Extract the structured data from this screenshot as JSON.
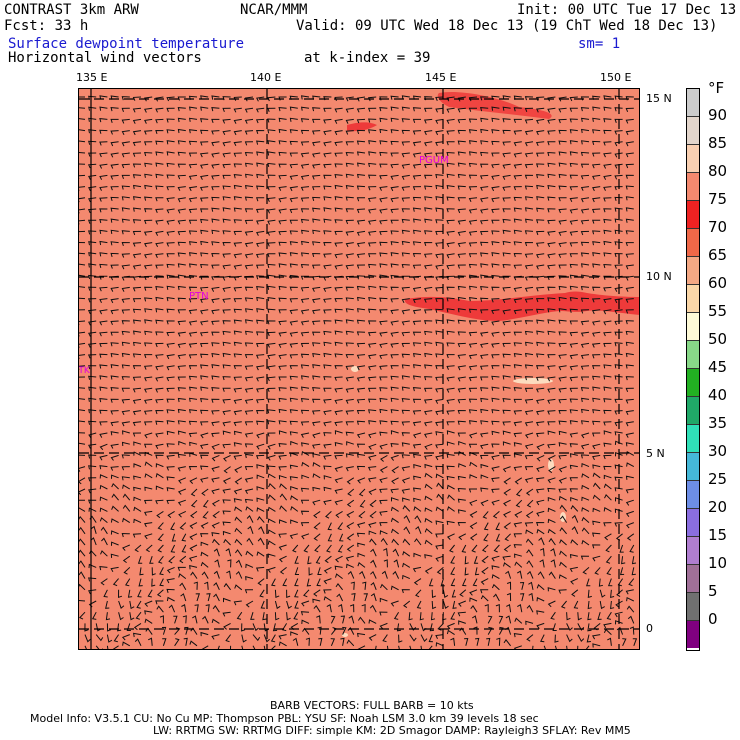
{
  "header": {
    "model": "CONTRAST  3km ARW",
    "org": "NCAR/MMM",
    "init": "Init: 00 UTC Tue 17 Dec 13",
    "fcst": "Fcst:   33 h",
    "valid": "Valid: 09 UTC Wed 18 Dec 13 (19 ChT Wed 18 Dec 13)",
    "field1": "Surface dewpoint temperature",
    "sm": "sm= 1",
    "field2": "Horizontal wind vectors",
    "kindex": "at k-index =  39"
  },
  "axes": {
    "lon_labels": [
      "135 E",
      "140 E",
      "145 E",
      "150 E"
    ],
    "lat_labels": [
      "15 N",
      "10 N",
      "5 N",
      "0"
    ]
  },
  "map": {
    "stations": [
      "PGUM",
      "PTN",
      "PTK"
    ],
    "base_color": "#f4896f",
    "moist_color": "#ee3a3a",
    "dry_color": "#fde5c8"
  },
  "legend": {
    "unit": "°F",
    "labels": [
      "90",
      "85",
      "80",
      "75",
      "70",
      "65",
      "60",
      "55",
      "50",
      "45",
      "40",
      "35",
      "30",
      "25",
      "20",
      "15",
      "10",
      "5",
      "0"
    ],
    "colors": [
      "#cccccc",
      "#e3d6cc",
      "#f9d0b2",
      "#f4896f",
      "#ee2222",
      "#f06848",
      "#f4a884",
      "#fbd7a8",
      "#fefad7",
      "#88d888",
      "#22b022",
      "#20a868",
      "#30e0b8",
      "#45b8d8",
      "#6d8ee6",
      "#8a6ee0",
      "#b07ed0",
      "#a07098",
      "#707070",
      "#800080"
    ]
  },
  "footer": {
    "barb": "BARB VECTORS:  FULL BARB = 10 kts",
    "line1": "Model Info: V3.5.1    CU: No Cu    MP: Thompson    PBL: YSU     SF: Noah LSM     3.0 km   39 levels    18 sec",
    "line2": "LW: RRTMG    SW: RRTMG   DIFF: simple KM: 2D Smagor DAMP: Rayleigh3   SFLAY: Rev MM5"
  }
}
